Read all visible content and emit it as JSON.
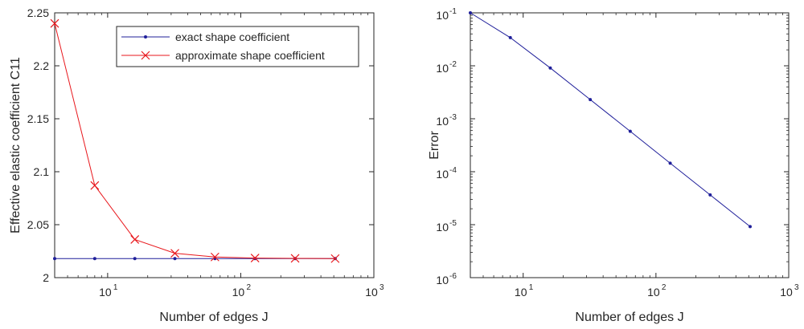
{
  "chart_data": [
    {
      "type": "line",
      "xscale": "log",
      "xlim": [
        4,
        1000
      ],
      "ylim": [
        2,
        2.25
      ],
      "xlabel": "Number of edges J",
      "ylabel": "Effective elastic coefficient C11",
      "legend_position": "top-right",
      "x": [
        4,
        8,
        16,
        32,
        64,
        128,
        256,
        512
      ],
      "series": [
        {
          "name": "exact shape coefficient",
          "color": "#1f1f9a",
          "marker": "dot",
          "values": [
            2.018,
            2.018,
            2.018,
            2.018,
            2.018,
            2.018,
            2.018,
            2.018
          ]
        },
        {
          "name": "approximate shape coefficient",
          "color": "#e8171c",
          "marker": "x",
          "values": [
            2.24,
            2.087,
            2.036,
            2.023,
            2.0195,
            2.0185,
            2.0182,
            2.018
          ]
        }
      ],
      "y_ticks": [
        "2",
        "2.05",
        "2.1",
        "2.15",
        "2.2",
        "2.25"
      ],
      "x_ticks": [
        {
          "base": "10",
          "exp": "1"
        },
        {
          "base": "10",
          "exp": "2"
        },
        {
          "base": "10",
          "exp": "3"
        }
      ]
    },
    {
      "type": "line",
      "xscale": "log",
      "yscale": "log",
      "xlim": [
        4,
        1000
      ],
      "ylim": [
        1e-06,
        0.1
      ],
      "xlabel": "Number of edges J",
      "ylabel": "Error",
      "x": [
        4,
        8,
        16,
        32,
        64,
        128,
        256,
        512
      ],
      "series": [
        {
          "color": "#1f1f9a",
          "marker": "dot",
          "values": [
            0.1,
            0.034,
            0.0091,
            0.0023,
            0.00058,
            0.000145,
            3.65e-05,
            9.2e-06
          ]
        }
      ],
      "y_ticks": [
        {
          "base": "10",
          "exp": "-6"
        },
        {
          "base": "10",
          "exp": "-5"
        },
        {
          "base": "10",
          "exp": "-4"
        },
        {
          "base": "10",
          "exp": "-3"
        },
        {
          "base": "10",
          "exp": "-2"
        },
        {
          "base": "10",
          "exp": "-1"
        }
      ],
      "x_ticks": [
        {
          "base": "10",
          "exp": "1"
        },
        {
          "base": "10",
          "exp": "2"
        },
        {
          "base": "10",
          "exp": "3"
        }
      ]
    }
  ]
}
